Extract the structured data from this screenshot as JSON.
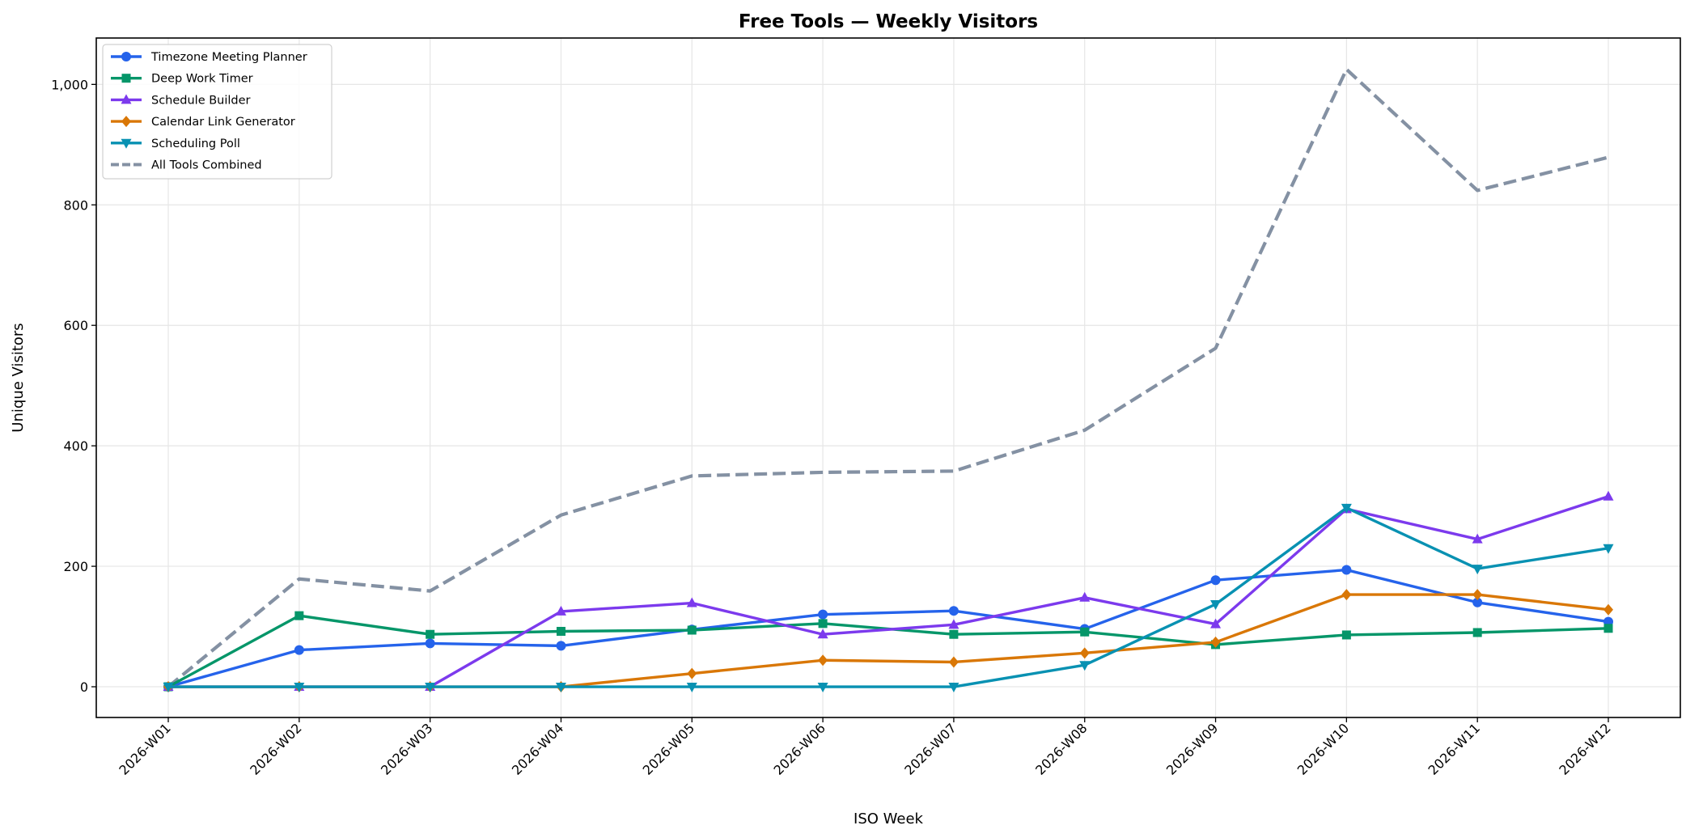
{
  "chart_data": {
    "type": "line",
    "title": "Free Tools — Weekly Visitors",
    "xlabel": "ISO Week",
    "ylabel": "Unique Visitors",
    "categories": [
      "2026-W01",
      "2026-W02",
      "2026-W03",
      "2026-W04",
      "2026-W05",
      "2026-W06",
      "2026-W07",
      "2026-W08",
      "2026-W09",
      "2026-W10",
      "2026-W11",
      "2026-W12"
    ],
    "ylim": [
      -51,
      1077
    ],
    "yticks": [
      0,
      200,
      400,
      600,
      800,
      1000
    ],
    "ytick_labels": [
      "0",
      "200",
      "400",
      "600",
      "800",
      "1,000"
    ],
    "grid": true,
    "legend_position": "top-left",
    "series": [
      {
        "name": "Timezone Meeting Planner",
        "color": "#2563eb",
        "marker": "circle",
        "dashed": false,
        "values": [
          0,
          61,
          72,
          68,
          95,
          120,
          126,
          96,
          177,
          194,
          140,
          108
        ]
      },
      {
        "name": "Deep Work Timer",
        "color": "#059669",
        "marker": "square",
        "dashed": false,
        "values": [
          0,
          118,
          87,
          92,
          94,
          105,
          87,
          91,
          70,
          86,
          90,
          97
        ]
      },
      {
        "name": "Schedule Builder",
        "color": "#7c3aed",
        "marker": "triangle-up",
        "dashed": false,
        "values": [
          0,
          0,
          0,
          125,
          139,
          87,
          103,
          148,
          104,
          295,
          245,
          316
        ]
      },
      {
        "name": "Calendar Link Generator",
        "color": "#d97706",
        "marker": "diamond",
        "dashed": false,
        "values": [
          0,
          0,
          0,
          0,
          22,
          44,
          41,
          56,
          74,
          153,
          153,
          128
        ]
      },
      {
        "name": "Scheduling Poll",
        "color": "#0891b2",
        "marker": "triangle-down",
        "dashed": false,
        "values": [
          0,
          0,
          0,
          0,
          0,
          0,
          0,
          36,
          137,
          297,
          196,
          230
        ]
      },
      {
        "name": "All Tools Combined",
        "color": "#8491a3",
        "marker": "none",
        "dashed": true,
        "values": [
          0,
          179,
          159,
          285,
          350,
          356,
          358,
          426,
          562,
          1025,
          824,
          879
        ]
      }
    ]
  }
}
